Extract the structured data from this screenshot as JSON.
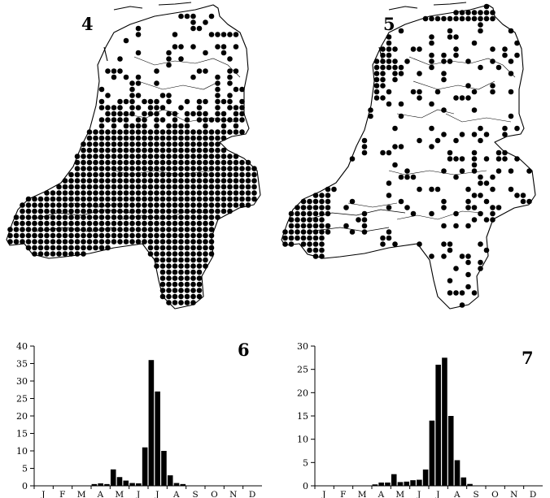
{
  "map4": {
    "figure_number": "4",
    "title": ""
  },
  "map5": {
    "figure_number": "5",
    "title": ""
  },
  "chart_data": [
    {
      "type": "bar",
      "figure_number": "6",
      "title": "",
      "xlabel": "",
      "ylabel": "",
      "ylim": [
        0,
        40
      ],
      "yticks": [
        "0",
        "5",
        "10",
        "15",
        "20",
        "25",
        "30",
        "35",
        "40"
      ],
      "months": [
        "J",
        "F",
        "M",
        "A",
        "M",
        "J",
        "J",
        "A",
        "S",
        "O",
        "N",
        "D"
      ],
      "periods_per_month": 3,
      "values": [
        0,
        0,
        0,
        0,
        0,
        0,
        0,
        0,
        0,
        0.5,
        0.7,
        0.5,
        4.7,
        2.5,
        1.5,
        0.8,
        0.7,
        11,
        36,
        27,
        10,
        3,
        0.8,
        0.5,
        0,
        0,
        0,
        0,
        0,
        0,
        0,
        0,
        0,
        0,
        0,
        0
      ],
      "grid": false
    },
    {
      "type": "bar",
      "figure_number": "7",
      "title": "",
      "xlabel": "",
      "ylabel": "",
      "ylim": [
        0,
        30
      ],
      "yticks": [
        "0",
        "5",
        "10",
        "15",
        "20",
        "25",
        "30"
      ],
      "months": [
        "J",
        "F",
        "M",
        "A",
        "M",
        "J",
        "J",
        "A",
        "S",
        "O",
        "N",
        "D"
      ],
      "periods_per_month": 3,
      "values": [
        0,
        0,
        0,
        0,
        0,
        0,
        0,
        0,
        0,
        0.3,
        0.7,
        0.7,
        2.5,
        0.8,
        0.9,
        1.2,
        1.3,
        3.5,
        14,
        26,
        27.5,
        15,
        5.5,
        1.8,
        0.4,
        0,
        0,
        0,
        0,
        0,
        0,
        0,
        0,
        0,
        0,
        0
      ],
      "grid": false
    }
  ]
}
